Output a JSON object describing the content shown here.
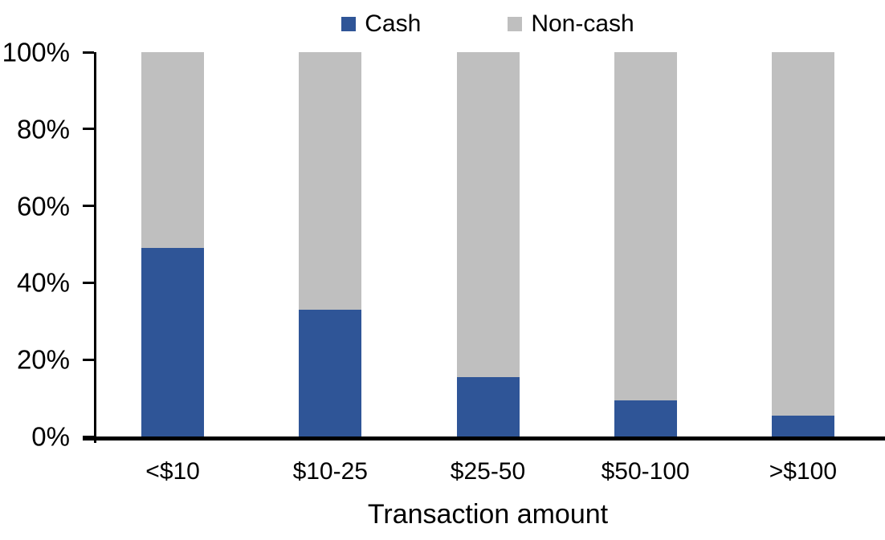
{
  "chart_data": {
    "type": "bar",
    "stacked": true,
    "units": "percent",
    "title": "",
    "xlabel": "Transaction amount",
    "ylabel": "",
    "categories": [
      "<$10",
      "$10-25",
      "$25-50",
      "$50-100",
      ">$100"
    ],
    "series": [
      {
        "name": "Cash",
        "color": "#2F5597",
        "values": [
          49,
          33,
          15.5,
          9.5,
          5.5
        ]
      },
      {
        "name": "Non-cash",
        "color": "#BFBFBF",
        "values": [
          51,
          67,
          84.5,
          90.5,
          94.5
        ]
      }
    ],
    "ylim": [
      0,
      100
    ],
    "y_tick_labels": [
      "0%",
      "20%",
      "40%",
      "60%",
      "80%",
      "100%"
    ],
    "legend_position": "top-center",
    "grid": false,
    "axis_color": "#000000",
    "background_color": "#FFFFFF"
  }
}
